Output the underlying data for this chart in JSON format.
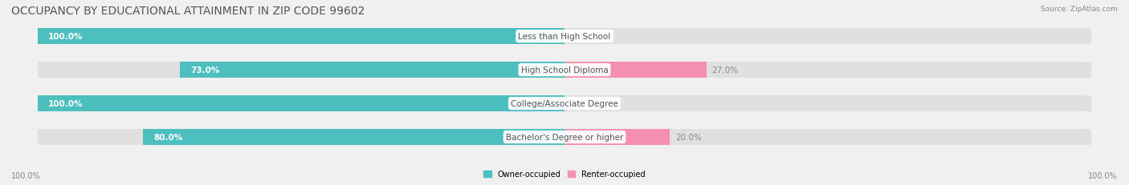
{
  "title": "OCCUPANCY BY EDUCATIONAL ATTAINMENT IN ZIP CODE 99602",
  "source": "Source: ZipAtlas.com",
  "categories": [
    "Less than High School",
    "High School Diploma",
    "College/Associate Degree",
    "Bachelor's Degree or higher"
  ],
  "owner_values": [
    100.0,
    73.0,
    100.0,
    80.0
  ],
  "renter_values": [
    0.0,
    27.0,
    0.0,
    20.0
  ],
  "owner_color": "#4DBFBF",
  "renter_color": "#F48FB1",
  "bg_color": "#f0f0f0",
  "bar_bg_color": "#e0e0e0",
  "title_fontsize": 10,
  "label_fontsize": 7.5,
  "tick_fontsize": 7,
  "bar_height": 0.55,
  "xlim": [
    -105,
    105
  ],
  "x_left_label": "100.0%",
  "x_right_label": "100.0%"
}
